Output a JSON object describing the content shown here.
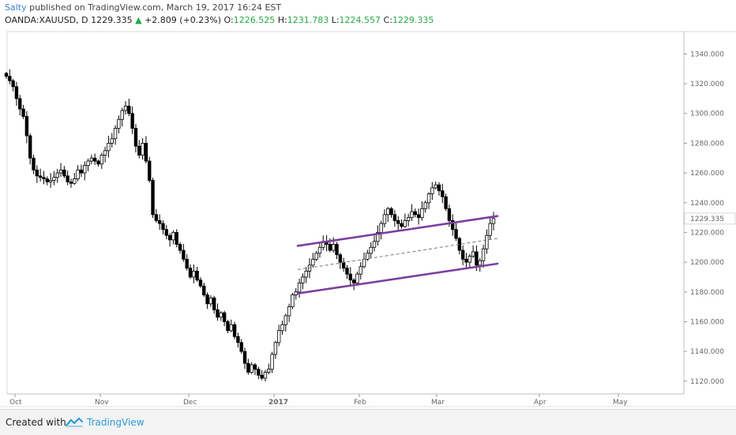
{
  "header": {
    "author": "Salty",
    "published_text": "published on TradingView.com, March 19, 2017 16:24 EST"
  },
  "quote": {
    "symbol": "OANDA:XAUUSD, D",
    "last": "1229.335",
    "arrow": "▲",
    "change": "+2.809 (+0.23%)",
    "o_label": "O:",
    "o_value": "1226.525",
    "h_label": "H:",
    "h_value": "1231.783",
    "l_label": "L:",
    "l_value": "1224.557",
    "c_label": "C:",
    "c_value": "1229.335"
  },
  "footer": {
    "created_with": "Created with",
    "brand": "TradingView"
  },
  "colors": {
    "up_candle": "#ffffff",
    "down_candle": "#000000",
    "channel": "#7b3fa0",
    "midline": "#777777",
    "quote_green": "#27a846",
    "author_blue": "#3a7fd5"
  },
  "chart_data": {
    "type": "candlestick",
    "instrument": "OANDA:XAUUSD",
    "timeframe": "D",
    "x_tick_labels": [
      "Oct",
      "Nov",
      "Dec",
      "2017",
      "Feb",
      "Mar",
      "Apr",
      "May"
    ],
    "y_tick_labels": [
      "1340.000",
      "1320.000",
      "1300.000",
      "1280.000",
      "1260.000",
      "1240.000",
      "1220.000",
      "1200.000",
      "1180.000",
      "1160.000",
      "1140.000",
      "1120.000"
    ],
    "y_ticks": [
      1340,
      1320,
      1300,
      1280,
      1260,
      1240,
      1220,
      1200,
      1180,
      1160,
      1140,
      1120
    ],
    "ylim": [
      1113,
      1354
    ],
    "last_price_label": "1229.335",
    "last_price": 1229.335,
    "close_series": [
      1325,
      1322,
      1318,
      1310,
      1303,
      1298,
      1285,
      1270,
      1262,
      1258,
      1257,
      1256,
      1254,
      1255,
      1257,
      1260,
      1262,
      1258,
      1254,
      1253,
      1256,
      1262,
      1260,
      1265,
      1268,
      1270,
      1268,
      1266,
      1272,
      1275,
      1280,
      1283,
      1290,
      1296,
      1302,
      1305,
      1300,
      1290,
      1278,
      1272,
      1280,
      1268,
      1255,
      1232,
      1228,
      1226,
      1222,
      1218,
      1215,
      1220,
      1212,
      1208,
      1202,
      1196,
      1190,
      1194,
      1188,
      1184,
      1178,
      1172,
      1176,
      1168,
      1163,
      1166,
      1160,
      1154,
      1158,
      1150,
      1146,
      1140,
      1132,
      1126,
      1131,
      1128,
      1124,
      1122,
      1126,
      1128,
      1138,
      1146,
      1154,
      1158,
      1164,
      1170,
      1178,
      1180,
      1186,
      1190,
      1194,
      1198,
      1202,
      1206,
      1210,
      1214,
      1212,
      1208,
      1212,
      1205,
      1200,
      1196,
      1192,
      1188,
      1186,
      1192,
      1197,
      1202,
      1206,
      1210,
      1214,
      1220,
      1226,
      1232,
      1236,
      1232,
      1228,
      1226,
      1224,
      1228,
      1230,
      1234,
      1232,
      1230,
      1236,
      1240,
      1246,
      1250,
      1252,
      1248,
      1244,
      1236,
      1228,
      1222,
      1216,
      1208,
      1202,
      1200,
      1204,
      1207,
      1198,
      1201,
      1209,
      1218,
      1226,
      1229.335
    ],
    "channel": {
      "upper": {
        "start": [
          1211,
          "Jan 4"
        ],
        "end": [
          1231,
          "Mar 17"
        ]
      },
      "lower": {
        "start": [
          1179,
          "Jan 4"
        ],
        "end": [
          1199,
          "Mar 17"
        ]
      },
      "mid": {
        "start": [
          1195,
          "Jan 4"
        ],
        "end": [
          1216,
          "Mar 17"
        ]
      }
    }
  }
}
